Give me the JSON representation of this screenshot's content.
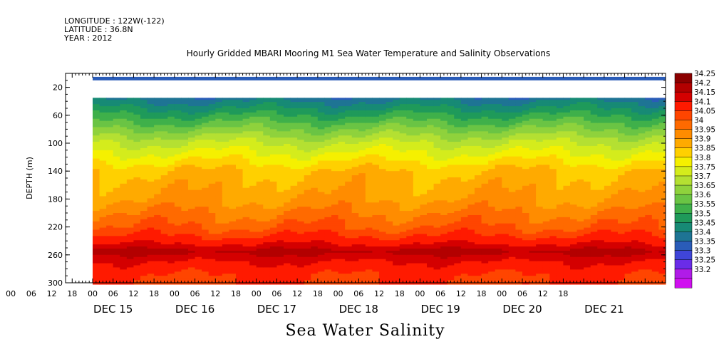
{
  "header": {
    "longitude": "LONGITUDE : 122W(-122)",
    "latitude": "LATITUDE : 36.8N",
    "year": "YEAR : 2012"
  },
  "chart_data": {
    "type": "heatmap",
    "title": "Hourly Gridded MBARI Mooring M1 Sea Water Temperature and Salinity Observations",
    "xlabel": "Sea Water Salinity",
    "ylabel": "DEPTH (m)",
    "ylim": [
      300,
      0
    ],
    "y_ticks": [
      20,
      60,
      100,
      140,
      180,
      220,
      260,
      300
    ],
    "x_hour_labels": [
      "00",
      "06",
      "12",
      "18",
      "00",
      "06",
      "12",
      "18",
      "00",
      "06",
      "12",
      "18",
      "00",
      "06",
      "12",
      "18",
      "00",
      "06",
      "12",
      "18",
      "00",
      "06",
      "12",
      "18",
      "00",
      "06",
      "12",
      "18"
    ],
    "x_day_labels": [
      "DEC 15",
      "DEC 16",
      "DEC 17",
      "DEC 18",
      "DEC 19",
      "DEC 20",
      "DEC 21"
    ],
    "data_start_hour": 0,
    "data_end_hour": 168,
    "shallow_band": {
      "depth_top": 5,
      "depth_bottom": 10,
      "value": 33.35
    },
    "gap": {
      "depth_top": 10,
      "depth_bottom": 35
    },
    "profile_depths": [
      35,
      60,
      100,
      140,
      180,
      220,
      245,
      255,
      270,
      290,
      300
    ],
    "profile_values": [
      33.42,
      33.55,
      33.75,
      33.9,
      33.95,
      34.05,
      34.15,
      34.22,
      34.15,
      34.1,
      34.1
    ],
    "colorbar": {
      "levels": [
        "34.25",
        "34.2",
        "34.15",
        "34.1",
        "34.05",
        "34",
        "33.95",
        "33.9",
        "33.85",
        "33.8",
        "33.75",
        "33.7",
        "33.65",
        "33.6",
        "33.55",
        "33.5",
        "33.45",
        "33.4",
        "33.35",
        "33.3",
        "33.25",
        "33.2"
      ],
      "colors": [
        "#8b0000",
        "#b30000",
        "#d40000",
        "#ff1a00",
        "#ff4500",
        "#ff6a00",
        "#ff8c00",
        "#ffaa00",
        "#ffd000",
        "#f5f000",
        "#d4ec1c",
        "#b4e032",
        "#8fd23c",
        "#6ac444",
        "#3fb04a",
        "#1f9a5a",
        "#178a75",
        "#1e7494",
        "#2a5cb8",
        "#3f45d8",
        "#6a2ce8",
        "#b01be8",
        "#d010f0"
      ]
    }
  }
}
